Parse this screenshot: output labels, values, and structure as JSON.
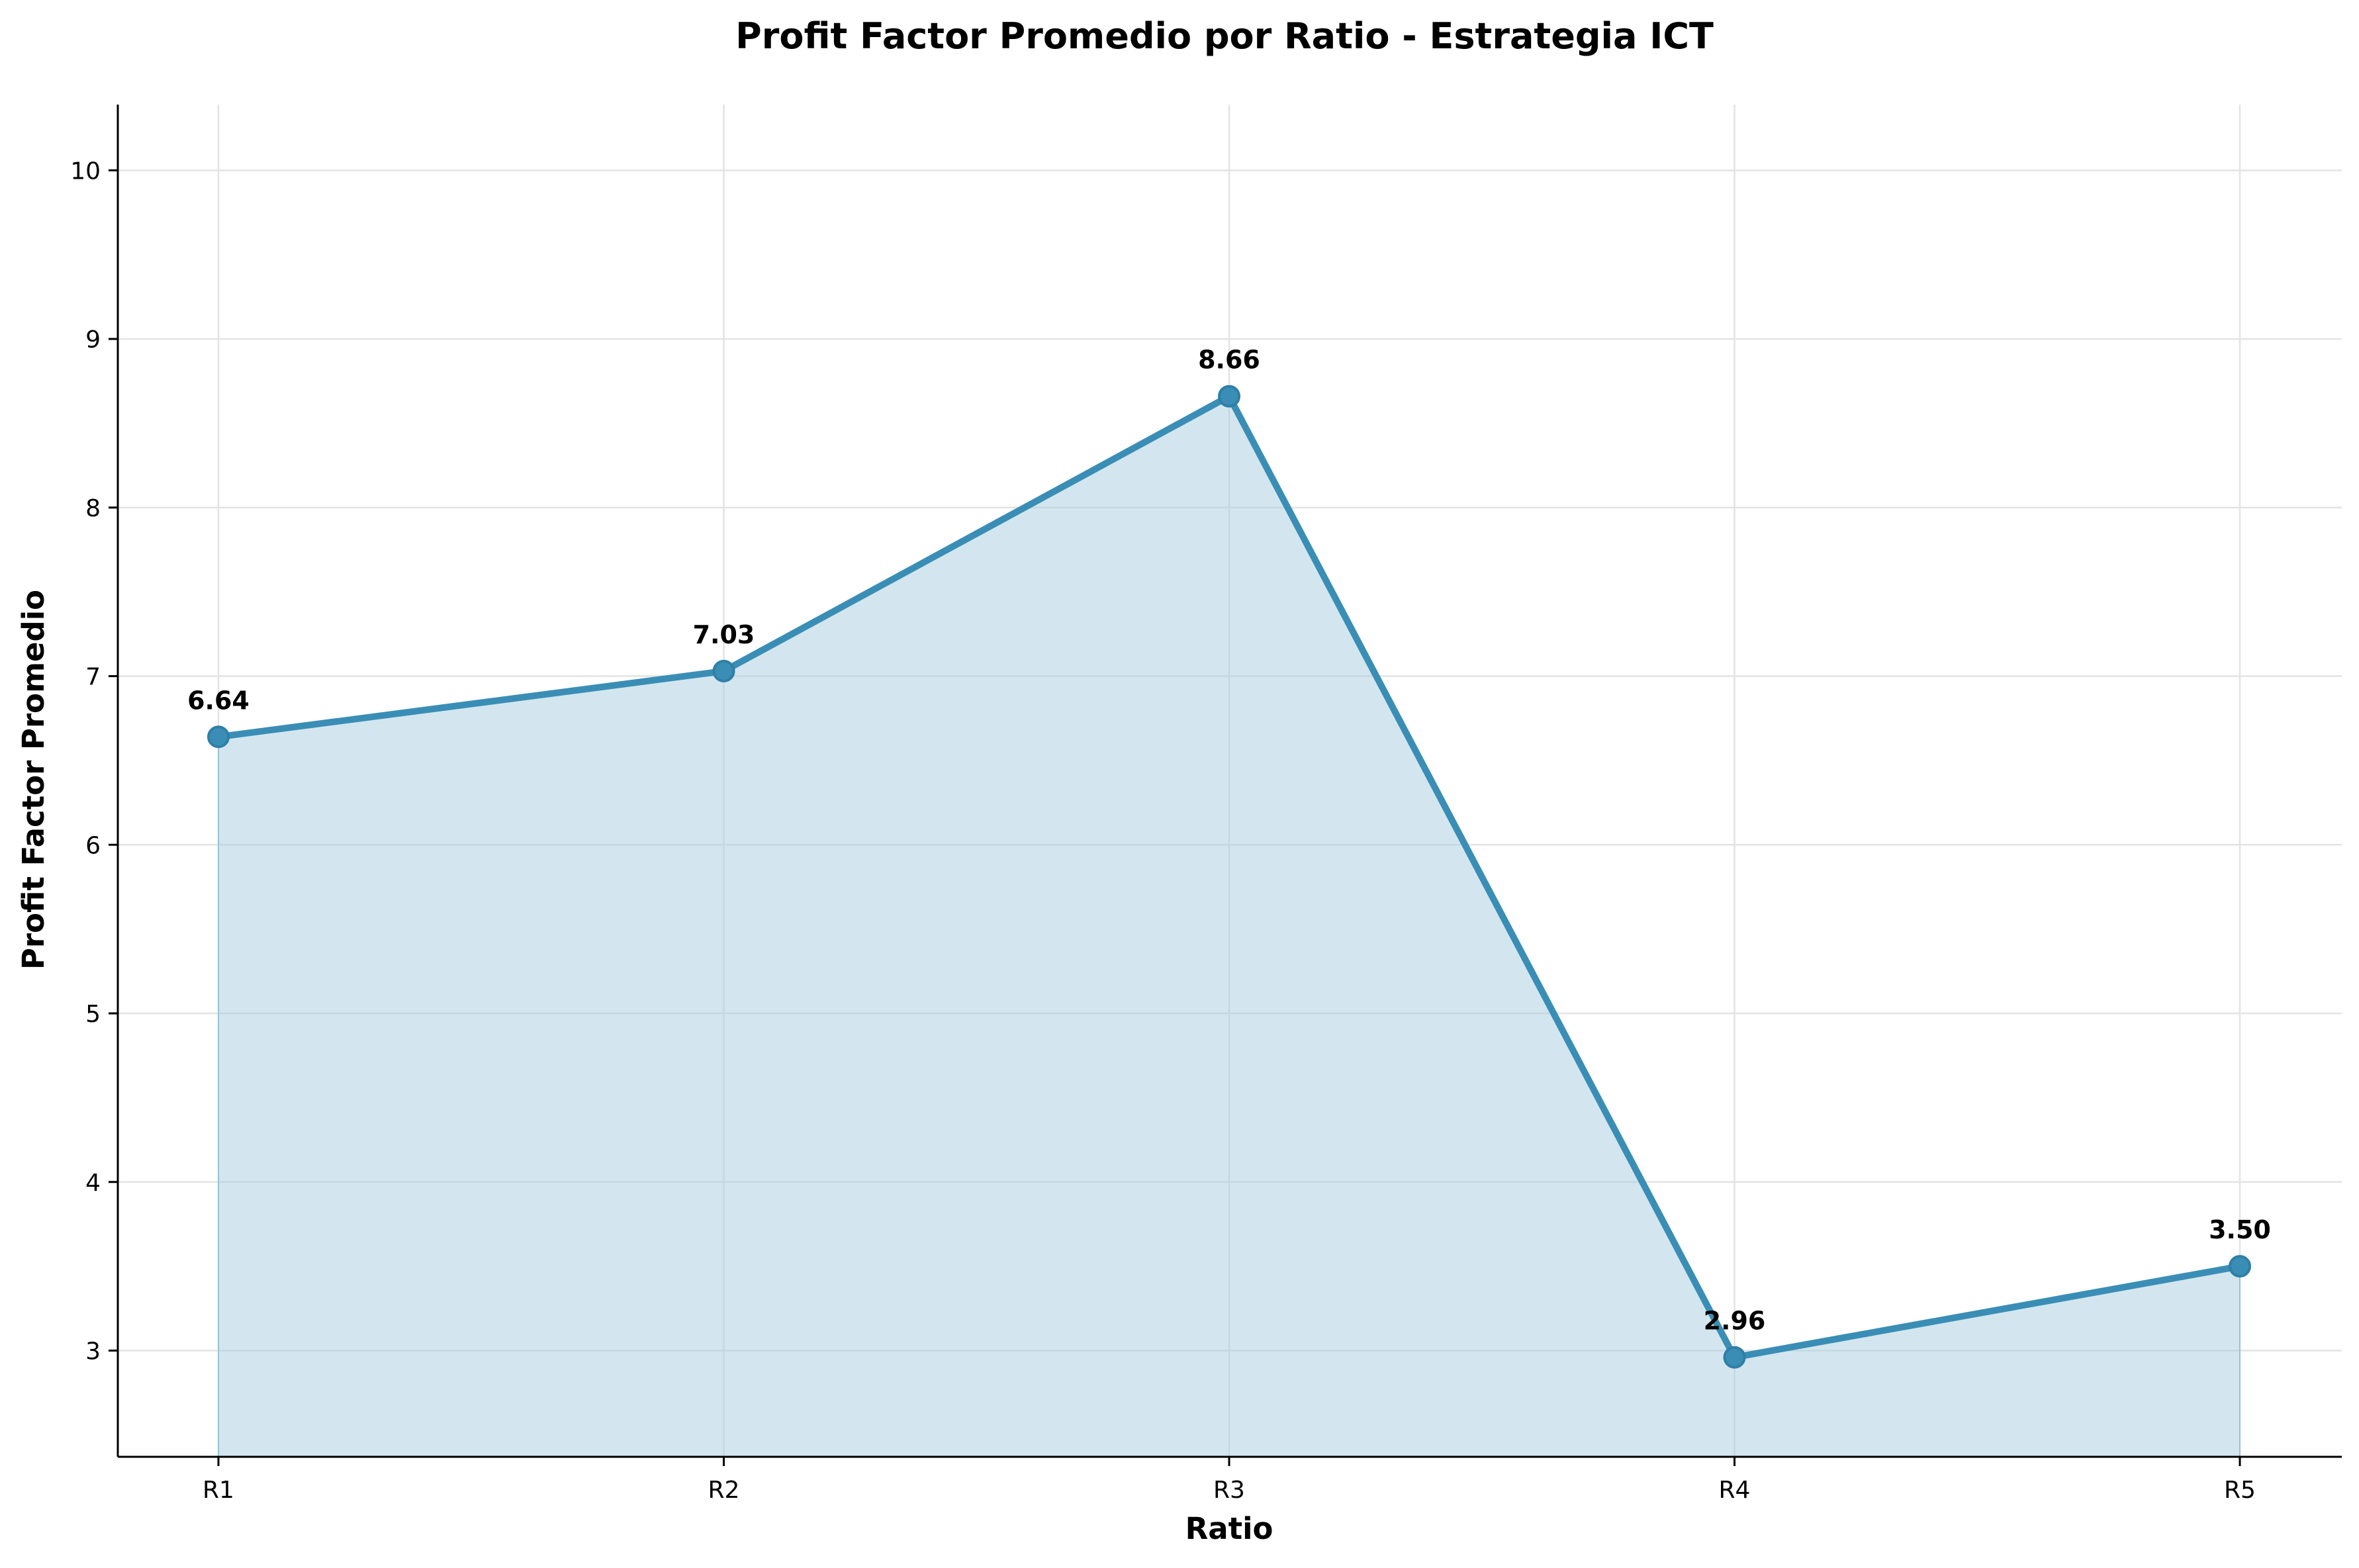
{
  "chart_data": {
    "type": "area",
    "title": "Profit Factor Promedio por Ratio - Estrategia ICT",
    "xlabel": "Ratio",
    "ylabel": "Profit Factor Promedio",
    "categories": [
      "R1",
      "R2",
      "R3",
      "R4",
      "R5"
    ],
    "values": [
      6.64,
      7.03,
      8.66,
      2.96,
      3.5
    ],
    "data_labels": [
      "6.64",
      "7.03",
      "8.66",
      "2.96",
      "3.50"
    ],
    "y_ticks": [
      3,
      4,
      5,
      6,
      7,
      8,
      9,
      10
    ],
    "ylim": [
      2.37,
      10.39
    ],
    "grid": true,
    "line_color": "#3a8eb5",
    "fill_color": "#a8cde0"
  }
}
